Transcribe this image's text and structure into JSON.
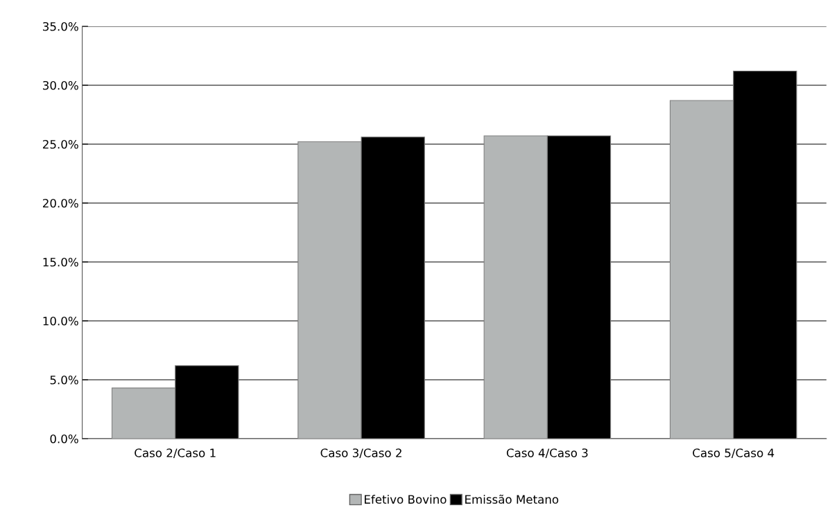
{
  "chart_data": {
    "type": "bar",
    "categories": [
      "Caso 2/Caso 1",
      "Caso 3/Caso 2",
      "Caso 4/Caso 3",
      "Caso 5/Caso 4"
    ],
    "series": [
      {
        "name": "Efetivo Bovino",
        "color": "#b3b6b6",
        "values": [
          4.3,
          25.2,
          25.7,
          28.7
        ]
      },
      {
        "name": "Emissão Metano",
        "color": "#000000",
        "values": [
          6.2,
          25.6,
          25.7,
          31.2
        ]
      }
    ],
    "ylim": [
      0,
      35
    ],
    "yticks": [
      {
        "value": 0,
        "label": "0.0%"
      },
      {
        "value": 5,
        "label": "5.0%"
      },
      {
        "value": 10,
        "label": "10.0%"
      },
      {
        "value": 15,
        "label": "15.0%"
      },
      {
        "value": 20,
        "label": "20.0%"
      },
      {
        "value": 25,
        "label": "25.0%"
      },
      {
        "value": 30,
        "label": "30.0%"
      },
      {
        "value": 35,
        "label": "35.0%"
      }
    ],
    "grid": "y",
    "legend": "bottom"
  }
}
